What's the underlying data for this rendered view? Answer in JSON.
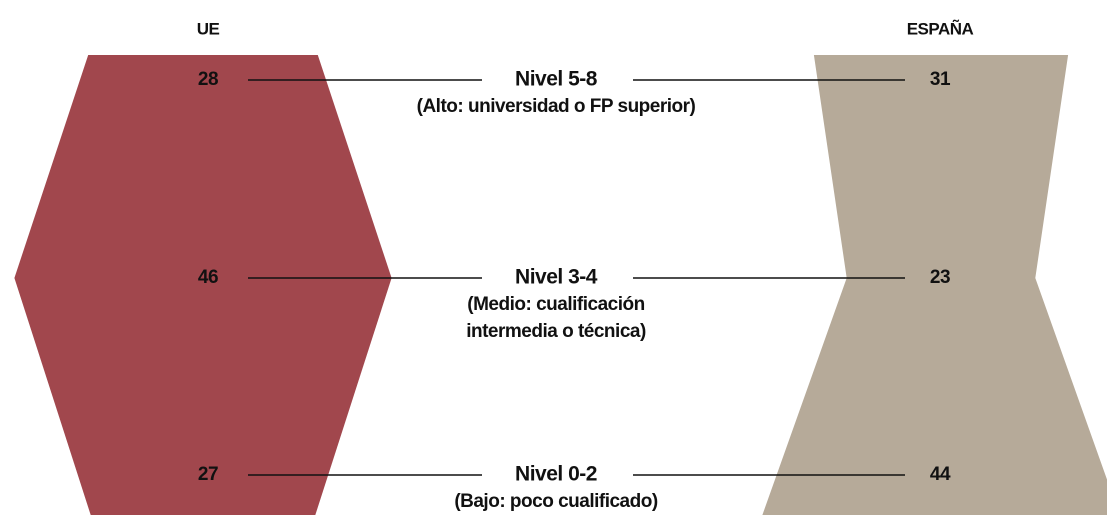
{
  "chart_data": {
    "type": "mirror-shape",
    "categories": [
      "Nivel 5-8",
      "Nivel 3-4",
      "Nivel 0-2"
    ],
    "descriptions": [
      [
        "(Alto: universidad o FP superior)"
      ],
      [
        "(Medio: cualificación",
        "intermedia o técnica)"
      ],
      [
        "(Bajo: poco cualificado)"
      ]
    ],
    "series": [
      {
        "name": "UE",
        "color": "#a1474d",
        "values": [
          28,
          46,
          27
        ]
      },
      {
        "name": "ESPAÑA",
        "color": "#b6aa99",
        "values": [
          31,
          23,
          44
        ]
      }
    ]
  }
}
